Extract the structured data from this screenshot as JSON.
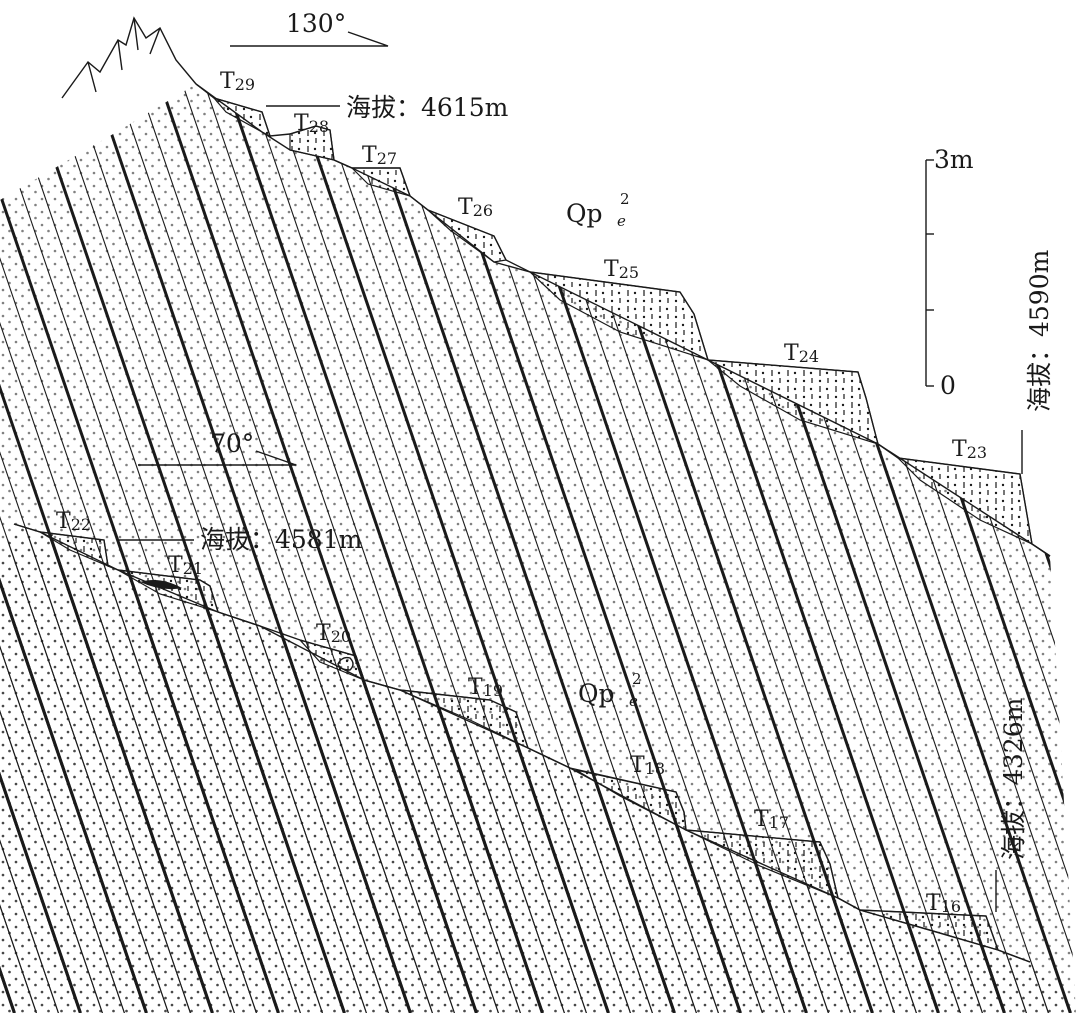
{
  "top_section": {
    "direction": "130°",
    "formation": {
      "base": "Qp",
      "sup": "2",
      "sub": "e"
    },
    "elevation_top": "海拔：4615m",
    "elevation_side": "海拔：4590m",
    "terraces": [
      {
        "prefix": "T",
        "num": "29"
      },
      {
        "prefix": "T",
        "num": "28"
      },
      {
        "prefix": "T",
        "num": "27"
      },
      {
        "prefix": "T",
        "num": "26"
      },
      {
        "prefix": "T",
        "num": "25"
      },
      {
        "prefix": "T",
        "num": "24"
      },
      {
        "prefix": "T",
        "num": "23"
      }
    ],
    "scale": {
      "top_label": "3m",
      "bottom_label": "0"
    }
  },
  "bottom_section": {
    "direction": "70°",
    "formation": {
      "base": "Qp",
      "sup": "2",
      "sub": "e"
    },
    "elevation_top": "海拔：4581m",
    "elevation_side": "海拔：4326m",
    "terraces": [
      {
        "prefix": "T",
        "num": "22"
      },
      {
        "prefix": "T",
        "num": "21"
      },
      {
        "prefix": "T",
        "num": "20"
      },
      {
        "prefix": "T",
        "num": "19"
      },
      {
        "prefix": "T",
        "num": "18"
      },
      {
        "prefix": "T",
        "num": "17"
      },
      {
        "prefix": "T",
        "num": "16"
      }
    ]
  }
}
